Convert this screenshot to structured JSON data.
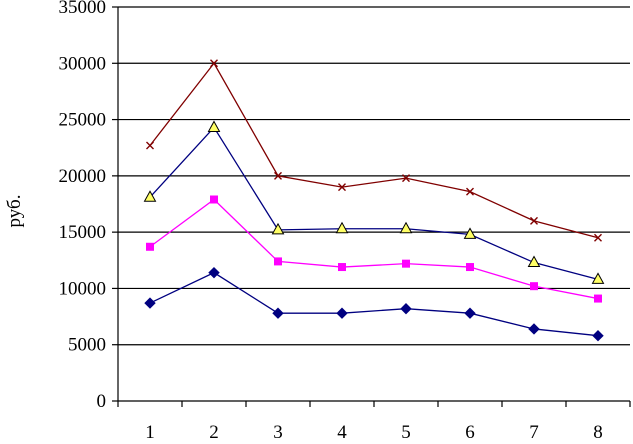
{
  "chart_data": {
    "type": "line",
    "ylabel": "руб.",
    "ylim": [
      0,
      35000
    ],
    "y_ticks": [
      0,
      5000,
      10000,
      15000,
      20000,
      25000,
      30000,
      35000
    ],
    "y_tick_labels": [
      "0",
      "5000",
      "10000",
      "15000",
      "20000",
      "25000",
      "30000",
      "35000"
    ],
    "categories": [
      "1",
      "2",
      "3",
      "4",
      "5",
      "6",
      "7",
      "8"
    ],
    "grid": "horizontal",
    "series": [
      {
        "values": [
          8700,
          11400,
          7800,
          7800,
          8200,
          7800,
          6400,
          5800
        ],
        "color": "#000080",
        "marker": "diamond",
        "marker_color": "#000080"
      },
      {
        "values": [
          13700,
          17900,
          12400,
          11900,
          12200,
          11900,
          10200,
          9100
        ],
        "color": "#FF00FF",
        "marker": "square",
        "marker_color": "#FF00FF"
      },
      {
        "values": [
          18100,
          24300,
          15200,
          15300,
          15300,
          14800,
          12300,
          10800
        ],
        "color": "#000080",
        "marker": "triangle",
        "marker_color": "#FFFF66"
      },
      {
        "values": [
          22700,
          30000,
          20000,
          19000,
          19800,
          18600,
          16000,
          14500
        ],
        "color": "#800000",
        "marker": "x",
        "marker_color": "#800000"
      }
    ]
  }
}
